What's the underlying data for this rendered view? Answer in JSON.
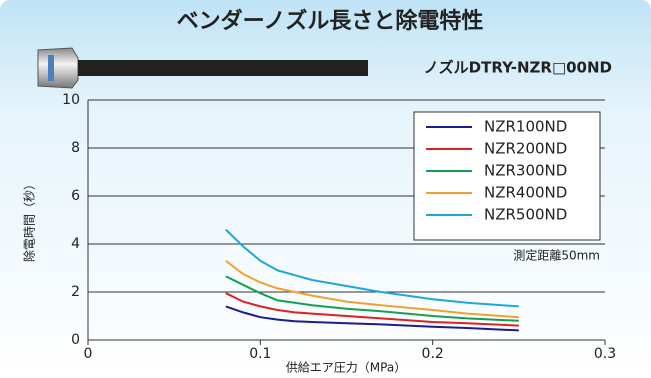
{
  "chart_data": {
    "type": "line",
    "title": "ベンダーノズル長さと除電特性",
    "subtitle": "ノズルDTRY-NZR□00ND",
    "annotation": "測定距離50mm",
    "xlabel": "供給エア圧力（MPa）",
    "ylabel": "除電時間（秒）",
    "x": [
      0.08,
      0.09,
      0.1,
      0.11,
      0.12,
      0.13,
      0.15,
      0.17,
      0.2,
      0.22,
      0.25
    ],
    "series": [
      {
        "name": "NZR100ND",
        "color": "#1c1c8c",
        "values": [
          1.4,
          1.15,
          0.95,
          0.85,
          0.78,
          0.75,
          0.7,
          0.65,
          0.55,
          0.5,
          0.4
        ]
      },
      {
        "name": "NZR200ND",
        "color": "#e02020",
        "values": [
          1.95,
          1.6,
          1.4,
          1.25,
          1.15,
          1.1,
          1.0,
          0.9,
          0.75,
          0.7,
          0.6
        ]
      },
      {
        "name": "NZR300ND",
        "color": "#12a050",
        "values": [
          2.65,
          2.3,
          1.95,
          1.65,
          1.55,
          1.45,
          1.3,
          1.2,
          1.0,
          0.9,
          0.8
        ]
      },
      {
        "name": "NZR400ND",
        "color": "#f0a030",
        "values": [
          3.3,
          2.75,
          2.4,
          2.15,
          2.0,
          1.85,
          1.6,
          1.45,
          1.25,
          1.1,
          0.95
        ]
      },
      {
        "name": "NZR500ND",
        "color": "#1ea8d8",
        "values": [
          4.6,
          3.9,
          3.3,
          2.9,
          2.7,
          2.5,
          2.25,
          2.0,
          1.7,
          1.55,
          1.4
        ]
      }
    ],
    "xlim": [
      0,
      0.3
    ],
    "xticks": [
      0,
      0.1,
      0.2,
      0.3
    ],
    "ylim": [
      0,
      10
    ],
    "yticks": [
      0,
      2,
      4,
      6,
      8,
      10
    ],
    "grid": true,
    "legend": "upper right"
  }
}
